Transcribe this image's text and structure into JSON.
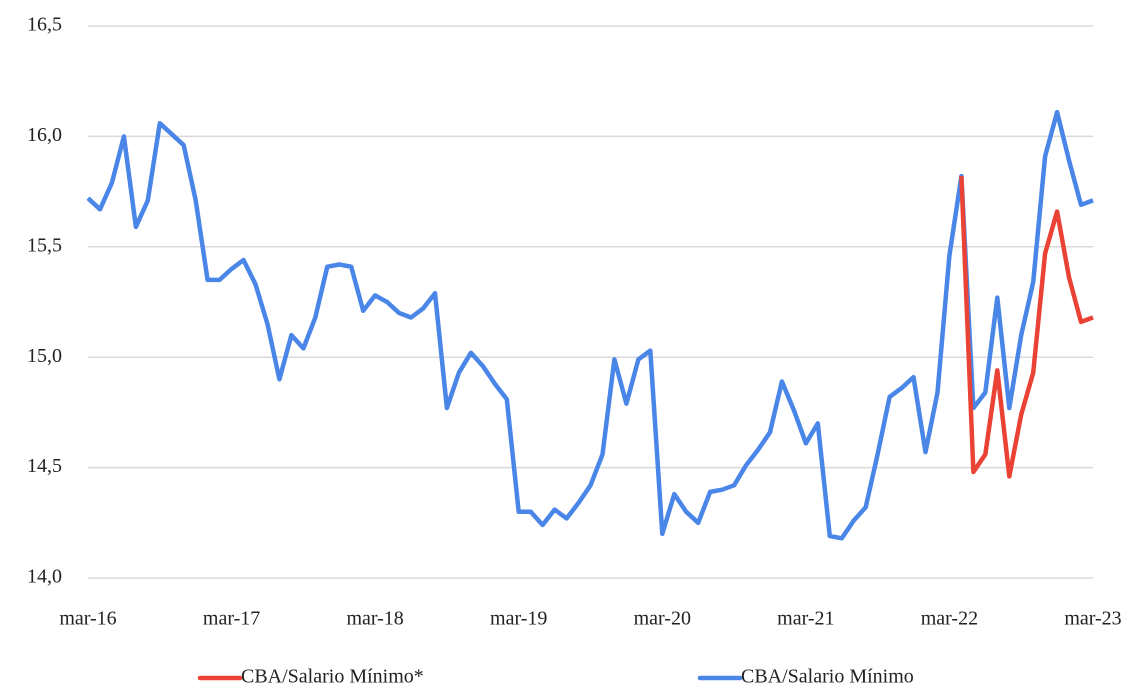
{
  "chart_data": {
    "type": "line",
    "categories": [
      "mar-16",
      null,
      null,
      null,
      null,
      null,
      null,
      null,
      null,
      null,
      null,
      null,
      "mar-17",
      null,
      null,
      null,
      null,
      null,
      null,
      null,
      null,
      null,
      null,
      null,
      "mar-18",
      null,
      null,
      null,
      null,
      null,
      null,
      null,
      null,
      null,
      null,
      null,
      "mar-19",
      null,
      null,
      null,
      null,
      null,
      null,
      null,
      null,
      null,
      null,
      null,
      "mar-20",
      null,
      null,
      null,
      null,
      null,
      null,
      null,
      null,
      null,
      null,
      null,
      "mar-21",
      null,
      null,
      null,
      null,
      null,
      null,
      null,
      null,
      null,
      null,
      null,
      "mar-22",
      null,
      null,
      null,
      null,
      null,
      null,
      null,
      null,
      null,
      null,
      null,
      "mar-23"
    ],
    "series": [
      {
        "name": "CBA/Salario Mínimo*",
        "color": "#ea4335",
        "values": [
          null,
          null,
          null,
          null,
          null,
          null,
          null,
          null,
          null,
          null,
          null,
          null,
          null,
          null,
          null,
          null,
          null,
          null,
          null,
          null,
          null,
          null,
          null,
          null,
          null,
          null,
          null,
          null,
          null,
          null,
          null,
          null,
          null,
          null,
          null,
          null,
          null,
          null,
          null,
          null,
          null,
          null,
          null,
          null,
          null,
          null,
          null,
          null,
          null,
          null,
          null,
          null,
          null,
          null,
          null,
          null,
          null,
          null,
          null,
          null,
          null,
          null,
          null,
          null,
          null,
          null,
          null,
          null,
          null,
          null,
          null,
          null,
          null,
          15.82,
          14.48,
          14.56,
          14.94,
          14.46,
          14.74,
          14.93,
          15.47,
          15.66,
          15.36,
          15.16,
          15.18
        ]
      },
      {
        "name": "CBA/Salario Mínimo",
        "color": "#4a86e8",
        "values": [
          15.72,
          15.67,
          15.79,
          16.0,
          15.59,
          15.71,
          16.06,
          16.01,
          15.96,
          15.71,
          15.35,
          15.35,
          15.4,
          15.44,
          15.33,
          15.15,
          14.9,
          15.1,
          15.04,
          15.18,
          15.41,
          15.42,
          15.41,
          15.21,
          15.28,
          15.25,
          15.2,
          15.18,
          15.22,
          15.29,
          14.77,
          14.93,
          15.02,
          14.96,
          14.88,
          14.81,
          14.3,
          14.3,
          14.24,
          14.31,
          14.27,
          14.34,
          14.42,
          14.56,
          14.99,
          14.79,
          14.99,
          15.03,
          14.2,
          14.38,
          14.3,
          14.25,
          14.39,
          14.4,
          14.42,
          14.51,
          14.58,
          14.66,
          14.89,
          14.76,
          14.61,
          14.7,
          14.19,
          14.18,
          14.26,
          14.32,
          14.56,
          14.82,
          14.86,
          14.91,
          14.57,
          14.84,
          15.46,
          15.82,
          14.77,
          14.84,
          15.27,
          14.77,
          15.1,
          15.34,
          15.91,
          16.11,
          15.89,
          15.69,
          15.71
        ]
      }
    ],
    "ylim": [
      14.0,
      16.5
    ],
    "yticks": [
      {
        "value": 14.0,
        "label": "14,0"
      },
      {
        "value": 14.5,
        "label": "14,5"
      },
      {
        "value": 15.0,
        "label": "15,0"
      },
      {
        "value": 15.5,
        "label": "15,5"
      },
      {
        "value": 16.0,
        "label": "16,0"
      },
      {
        "value": 16.5,
        "label": "16,5"
      }
    ],
    "grid": true,
    "legend": "bottom"
  }
}
